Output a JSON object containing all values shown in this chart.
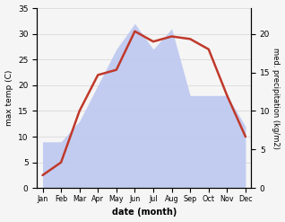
{
  "months": [
    "Jan",
    "Feb",
    "Mar",
    "Apr",
    "May",
    "Jun",
    "Jul",
    "Aug",
    "Sep",
    "Oct",
    "Nov",
    "Dec"
  ],
  "temperature": [
    2.5,
    5.0,
    15.0,
    22.0,
    23.0,
    30.5,
    28.5,
    29.5,
    29.0,
    27.0,
    18.0,
    10.0
  ],
  "precipitation": [
    9,
    9,
    13,
    20,
    27,
    32,
    27,
    31,
    18,
    18,
    18,
    12
  ],
  "temp_color": "#c0392b",
  "precip_fill_color": "#bdc8f0",
  "ylim_temp": [
    0,
    35
  ],
  "ylim_precip": [
    0,
    23.33
  ],
  "right_ticks": [
    0,
    5,
    10,
    15,
    20
  ],
  "left_ticks": [
    0,
    5,
    10,
    15,
    20,
    25,
    30,
    35
  ],
  "ylabel_left": "max temp (C)",
  "ylabel_right": "med. precipitation (kg/m2)",
  "xlabel": "date (month)",
  "bg_color": "#f5f5f5",
  "temp_linewidth": 1.8
}
